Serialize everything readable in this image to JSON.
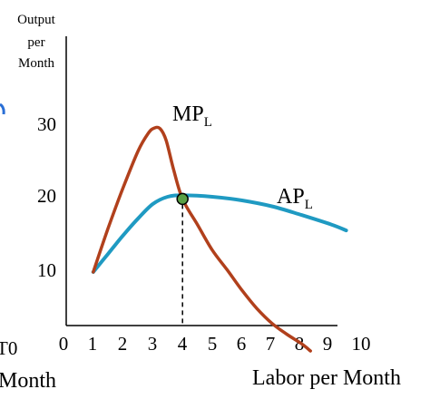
{
  "chart_data": {
    "type": "line",
    "title": "",
    "ylabel": "Output per Month",
    "ylabel_lines": [
      "Output",
      "per",
      "Month"
    ],
    "xlabel": "Labor per Month",
    "x_ticks": [
      "0",
      "1",
      "2",
      "3",
      "4",
      "5",
      "6",
      "7",
      "8",
      "9",
      "10"
    ],
    "y_ticks": [
      "10",
      "20",
      "30"
    ],
    "xlim": [
      0,
      10
    ],
    "ylim": [
      0,
      37
    ],
    "grid": false,
    "series": [
      {
        "name": "MP",
        "subscript": "L",
        "color": "#b1401c",
        "points": [
          [
            1,
            10
          ],
          [
            1.5,
            16
          ],
          [
            2,
            21.5
          ],
          [
            2.5,
            26.5
          ],
          [
            2.85,
            29
          ],
          [
            3.05,
            29.7
          ],
          [
            3.25,
            29.6
          ],
          [
            3.45,
            28
          ],
          [
            3.7,
            24
          ],
          [
            4,
            20
          ],
          [
            4.5,
            16.5
          ],
          [
            5,
            13
          ],
          [
            5.5,
            10.3
          ],
          [
            6,
            7.5
          ],
          [
            6.5,
            5
          ],
          [
            7,
            3
          ],
          [
            7.5,
            1.5
          ],
          [
            8,
            0.2
          ],
          [
            8.3,
            -0.8
          ]
        ]
      },
      {
        "name": "AP",
        "subscript": "L",
        "color": "#1f9ac2",
        "points": [
          [
            1,
            10
          ],
          [
            1.5,
            12.5
          ],
          [
            2,
            15
          ],
          [
            2.5,
            17.3
          ],
          [
            3,
            19.3
          ],
          [
            3.5,
            20.3
          ],
          [
            4,
            20.5
          ],
          [
            5,
            20.3
          ],
          [
            6,
            19.8
          ],
          [
            7,
            19
          ],
          [
            8,
            17.8
          ],
          [
            9,
            16.5
          ],
          [
            9.5,
            15.7
          ]
        ]
      }
    ],
    "intersection": {
      "x": 4,
      "y": 20,
      "color": "#5aa045"
    },
    "clipped_text": {
      "left_tick": "T0",
      "left_label": "Month"
    }
  }
}
